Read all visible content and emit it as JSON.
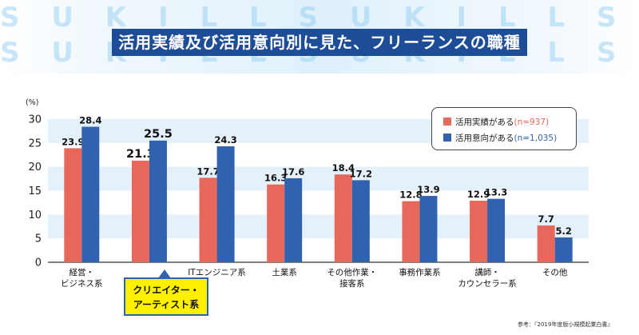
{
  "title": "活用実績及び活用意向別に見た、フリーランスの職種",
  "banner_decoration": "S U K I L L S U K I L L S U K I L L",
  "y_unit_label": "(%)",
  "legend": [
    {
      "label": "活用実績がある",
      "n": "(n=937)",
      "color": "#e8675a"
    },
    {
      "label": "活用意向がある",
      "n": "(n=1,035)",
      "color": "#3162b0"
    }
  ],
  "highlight": {
    "line1": "クリエイター・",
    "line2": "アーティスト系",
    "fill": "#fff000"
  },
  "source": "参考：『2019年度版小規模起業白書』",
  "chart_data": {
    "type": "bar",
    "title": "活用実績及び活用意向別に見た、フリーランスの職種",
    "ylabel": "(%)",
    "xlabel": "",
    "ylim": [
      0,
      30
    ],
    "yticks": [
      "0",
      "5",
      "10",
      "15",
      "20",
      "25",
      "30"
    ],
    "grid": "alternating bands",
    "legend_position": "top-right",
    "categories": [
      [
        "経営・",
        "ビジネス系"
      ],
      [
        "クリエイター・",
        "アーティスト系"
      ],
      [
        "ITエンジニア系"
      ],
      [
        "土業系"
      ],
      [
        "その他作業・",
        "接客系"
      ],
      [
        "事務作業系"
      ],
      [
        "講師・",
        "カウンセラー系"
      ],
      [
        "その他"
      ]
    ],
    "highlight_index": 1,
    "series": [
      {
        "name": "活用実績がある",
        "n": "(n=937)",
        "color": "#e8675a",
        "values": [
          23.9,
          21.3,
          17.7,
          16.3,
          18.4,
          12.8,
          12.9,
          7.7
        ],
        "labels": [
          "23.9",
          "21.3",
          "17.7",
          "16.3",
          "18.4",
          "12.8",
          "12.9",
          "7.7"
        ]
      },
      {
        "name": "活用意向がある",
        "n": "(n=1,035)",
        "color": "#3162b0",
        "values": [
          28.4,
          25.5,
          24.3,
          17.6,
          17.2,
          13.9,
          13.3,
          5.2
        ],
        "labels": [
          "28.4",
          "25.5",
          "24.3",
          "17.6",
          "17.2",
          "13.9",
          "13.3",
          "5.2"
        ]
      }
    ]
  }
}
